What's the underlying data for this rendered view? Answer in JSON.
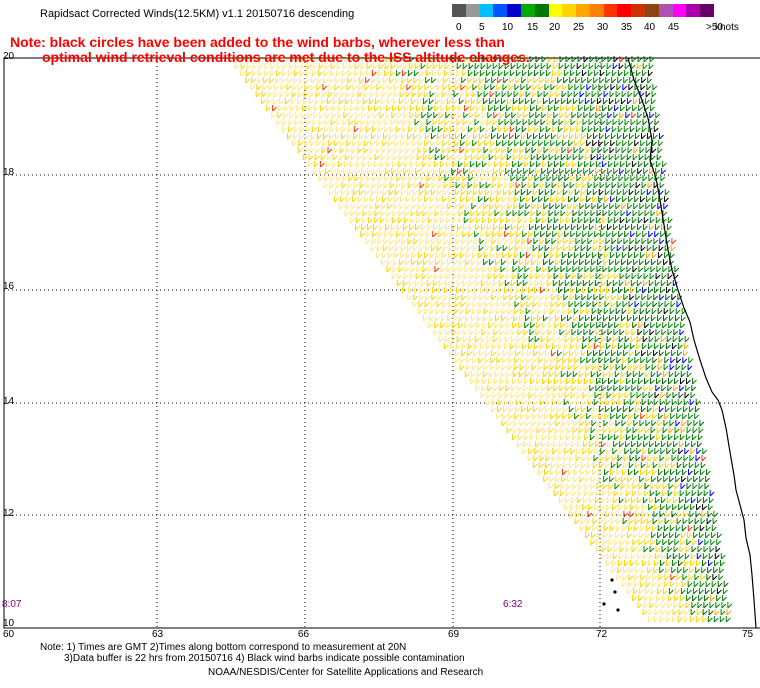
{
  "header": {
    "title": "Rapidsact Corrected Winds(12.5KM) v1.1 20150716 descending",
    "note_line1": "Note: black circles have been added to the wind barbs, wherever less than",
    "note_line2": "optimal wind retrieval conditions are met due to the ISS altitude changes."
  },
  "legend": {
    "labels": [
      "0",
      "5",
      "10",
      "15",
      "20",
      "25",
      "30",
      "35",
      "40",
      "45",
      ">50"
    ],
    "units": "knots",
    "colors": [
      "#555555",
      "#999999",
      "#00bfff",
      "#0055ff",
      "#0000cc",
      "#00aa00",
      "#007700",
      "#ffff00",
      "#ffd400",
      "#ffa500",
      "#ff7f00",
      "#ff3300",
      "#ff0000",
      "#cc3300",
      "#8b4513",
      "#b050b0",
      "#ff00ff",
      "#aa00aa",
      "#660066"
    ]
  },
  "map": {
    "lat_labels": [
      "20",
      "18",
      "16",
      "14",
      "12",
      "10"
    ],
    "lon_labels": [
      "60",
      "63",
      "66",
      "69",
      "72",
      "75"
    ],
    "time_labels": [
      "8:07",
      "6:32"
    ],
    "barb_colors": {
      "light": "#ffe680",
      "yellow": "#ffd400",
      "orange": "#ffa500",
      "green": "#008800",
      "darkgreen": "#006600",
      "blue": "#0000ff",
      "black": "#000000",
      "red": "#ff3300"
    }
  },
  "footer": {
    "line1": "Note: 1) Times are GMT 2)Times along bottom correspond to measurement at 20N",
    "line2": "3)Data buffer is 22 hrs from 20150716 4) Black wind barbs indicate possible contamination",
    "line3": "NOAA/NESDIS/Center for Satellite Applications and Research"
  }
}
